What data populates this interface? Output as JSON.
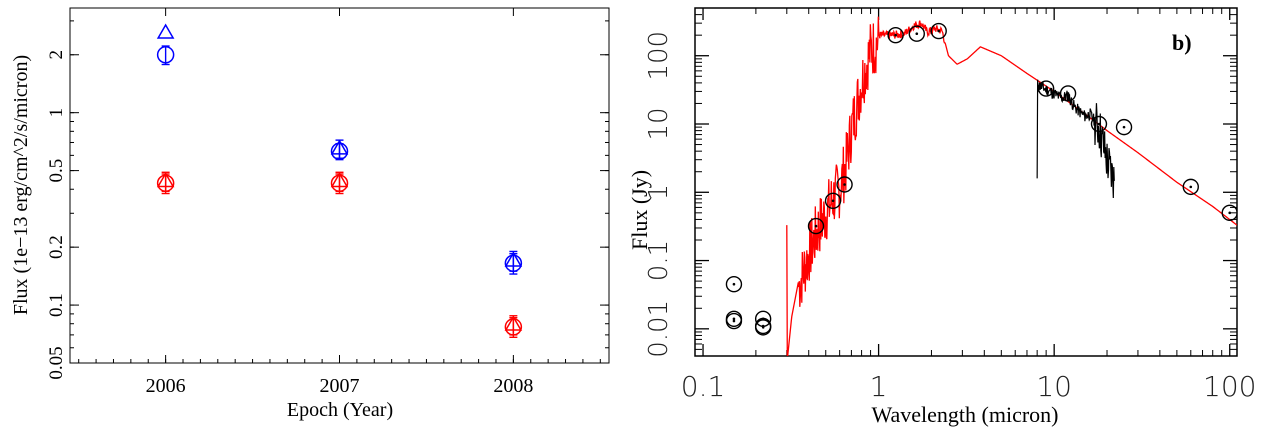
{
  "chart_data": [
    {
      "type": "scatter",
      "xlabel": "Epoch (Year)",
      "ylabel": "Flux (1e−13 erg/cm^2/s/micron)",
      "xlim": [
        2005.45,
        2008.55
      ],
      "ylim": [
        0.05,
        3.5
      ],
      "yscale": "log",
      "grid": false,
      "x_ticks": [
        2006,
        2007,
        2008
      ],
      "x_tick_labels": [
        "2006",
        "2007",
        "2008"
      ],
      "y_ticks": [
        0.05,
        0.1,
        0.2,
        0.5,
        1,
        2
      ],
      "y_tick_labels": [
        "0.05",
        "0.1",
        "0.2",
        "0.5",
        "1",
        "2"
      ],
      "series": [
        {
          "color": "#0000ff",
          "markers": [
            {
              "x": 2006,
              "y": 2.6,
              "marker": "triangle",
              "err": 0
            },
            {
              "x": 2006,
              "y": 2.0,
              "marker": "circle",
              "err": 0.22
            },
            {
              "x": 2007,
              "y": 0.65,
              "marker": "triangle",
              "err": 0.07
            },
            {
              "x": 2007,
              "y": 0.63,
              "marker": "circle",
              "err": 0.06
            },
            {
              "x": 2008,
              "y": 0.17,
              "marker": "triangle",
              "err": 0.02
            },
            {
              "x": 2008,
              "y": 0.165,
              "marker": "circle",
              "err": 0.02
            }
          ]
        },
        {
          "color": "#ff0000",
          "markers": [
            {
              "x": 2006,
              "y": 0.44,
              "marker": "triangle",
              "err": 0.05
            },
            {
              "x": 2006,
              "y": 0.43,
              "marker": "circle",
              "err": 0.05
            },
            {
              "x": 2007,
              "y": 0.44,
              "marker": "triangle",
              "err": 0.05
            },
            {
              "x": 2007,
              "y": 0.43,
              "marker": "circle",
              "err": 0.05
            },
            {
              "x": 2008,
              "y": 0.079,
              "marker": "triangle",
              "err": 0.009
            },
            {
              "x": 2008,
              "y": 0.077,
              "marker": "circle",
              "err": 0.009
            }
          ]
        }
      ]
    },
    {
      "type": "line",
      "panel_label": "b)",
      "xlabel": "Wavelength (micron)",
      "ylabel": "Flux (Jy)",
      "xscale": "log",
      "yscale": "log",
      "xlim": [
        0.09,
        110
      ],
      "ylim": [
        0.004,
        500
      ],
      "grid": false,
      "x_ticks": [
        0.1,
        1,
        10,
        100
      ],
      "x_tick_labels": [
        "0.1",
        "1",
        "10",
        "100"
      ],
      "y_ticks": [
        0.01,
        0.1,
        1,
        10,
        100
      ],
      "y_tick_labels": [
        "0.01",
        "0.1",
        "1",
        "10",
        "100"
      ],
      "model_color": "#ff0000",
      "spectrum_color": "#000000",
      "model_sed": {
        "x": [
          0.3,
          0.32,
          0.35,
          0.4,
          0.45,
          0.5,
          0.55,
          0.6,
          0.65,
          0.7,
          0.8,
          0.9,
          1.0,
          1.2,
          1.4,
          1.6,
          1.75,
          1.9,
          2.1,
          2.3,
          2.5,
          2.8,
          3.2,
          3.8,
          5,
          7,
          10,
          15,
          20,
          30,
          50,
          80,
          110
        ],
        "y": [
          0.003,
          0.015,
          0.05,
          0.15,
          0.35,
          0.6,
          1.0,
          1.4,
          3.0,
          10,
          50,
          150,
          200,
          200,
          210,
          280,
          300,
          220,
          250,
          230,
          100,
          75,
          90,
          135,
          100,
          55,
          30,
          14,
          8,
          3.8,
          1.4,
          0.62,
          0.33
        ]
      },
      "observed_spectrum": {
        "x": [
          8,
          9,
          10,
          11,
          12,
          13,
          14,
          15,
          16,
          17,
          18,
          19,
          20,
          21,
          22
        ],
        "y": [
          38,
          32,
          28,
          24,
          26,
          18,
          15,
          13,
          14,
          11,
          9,
          5,
          3,
          2,
          1.5
        ]
      },
      "photometry": [
        {
          "x": 0.15,
          "y": 0.045
        },
        {
          "x": 0.15,
          "y": 0.014
        },
        {
          "x": 0.15,
          "y": 0.013
        },
        {
          "x": 0.22,
          "y": 0.014
        },
        {
          "x": 0.22,
          "y": 0.011
        },
        {
          "x": 0.22,
          "y": 0.0105
        },
        {
          "x": 0.44,
          "y": 0.32
        },
        {
          "x": 0.55,
          "y": 0.75
        },
        {
          "x": 0.64,
          "y": 1.3
        },
        {
          "x": 1.25,
          "y": 200
        },
        {
          "x": 1.65,
          "y": 210
        },
        {
          "x": 2.2,
          "y": 230
        },
        {
          "x": 9,
          "y": 33
        },
        {
          "x": 12,
          "y": 28
        },
        {
          "x": 18,
          "y": 10
        },
        {
          "x": 25,
          "y": 9
        },
        {
          "x": 60,
          "y": 1.2
        },
        {
          "x": 100,
          "y": 0.5
        }
      ]
    }
  ]
}
